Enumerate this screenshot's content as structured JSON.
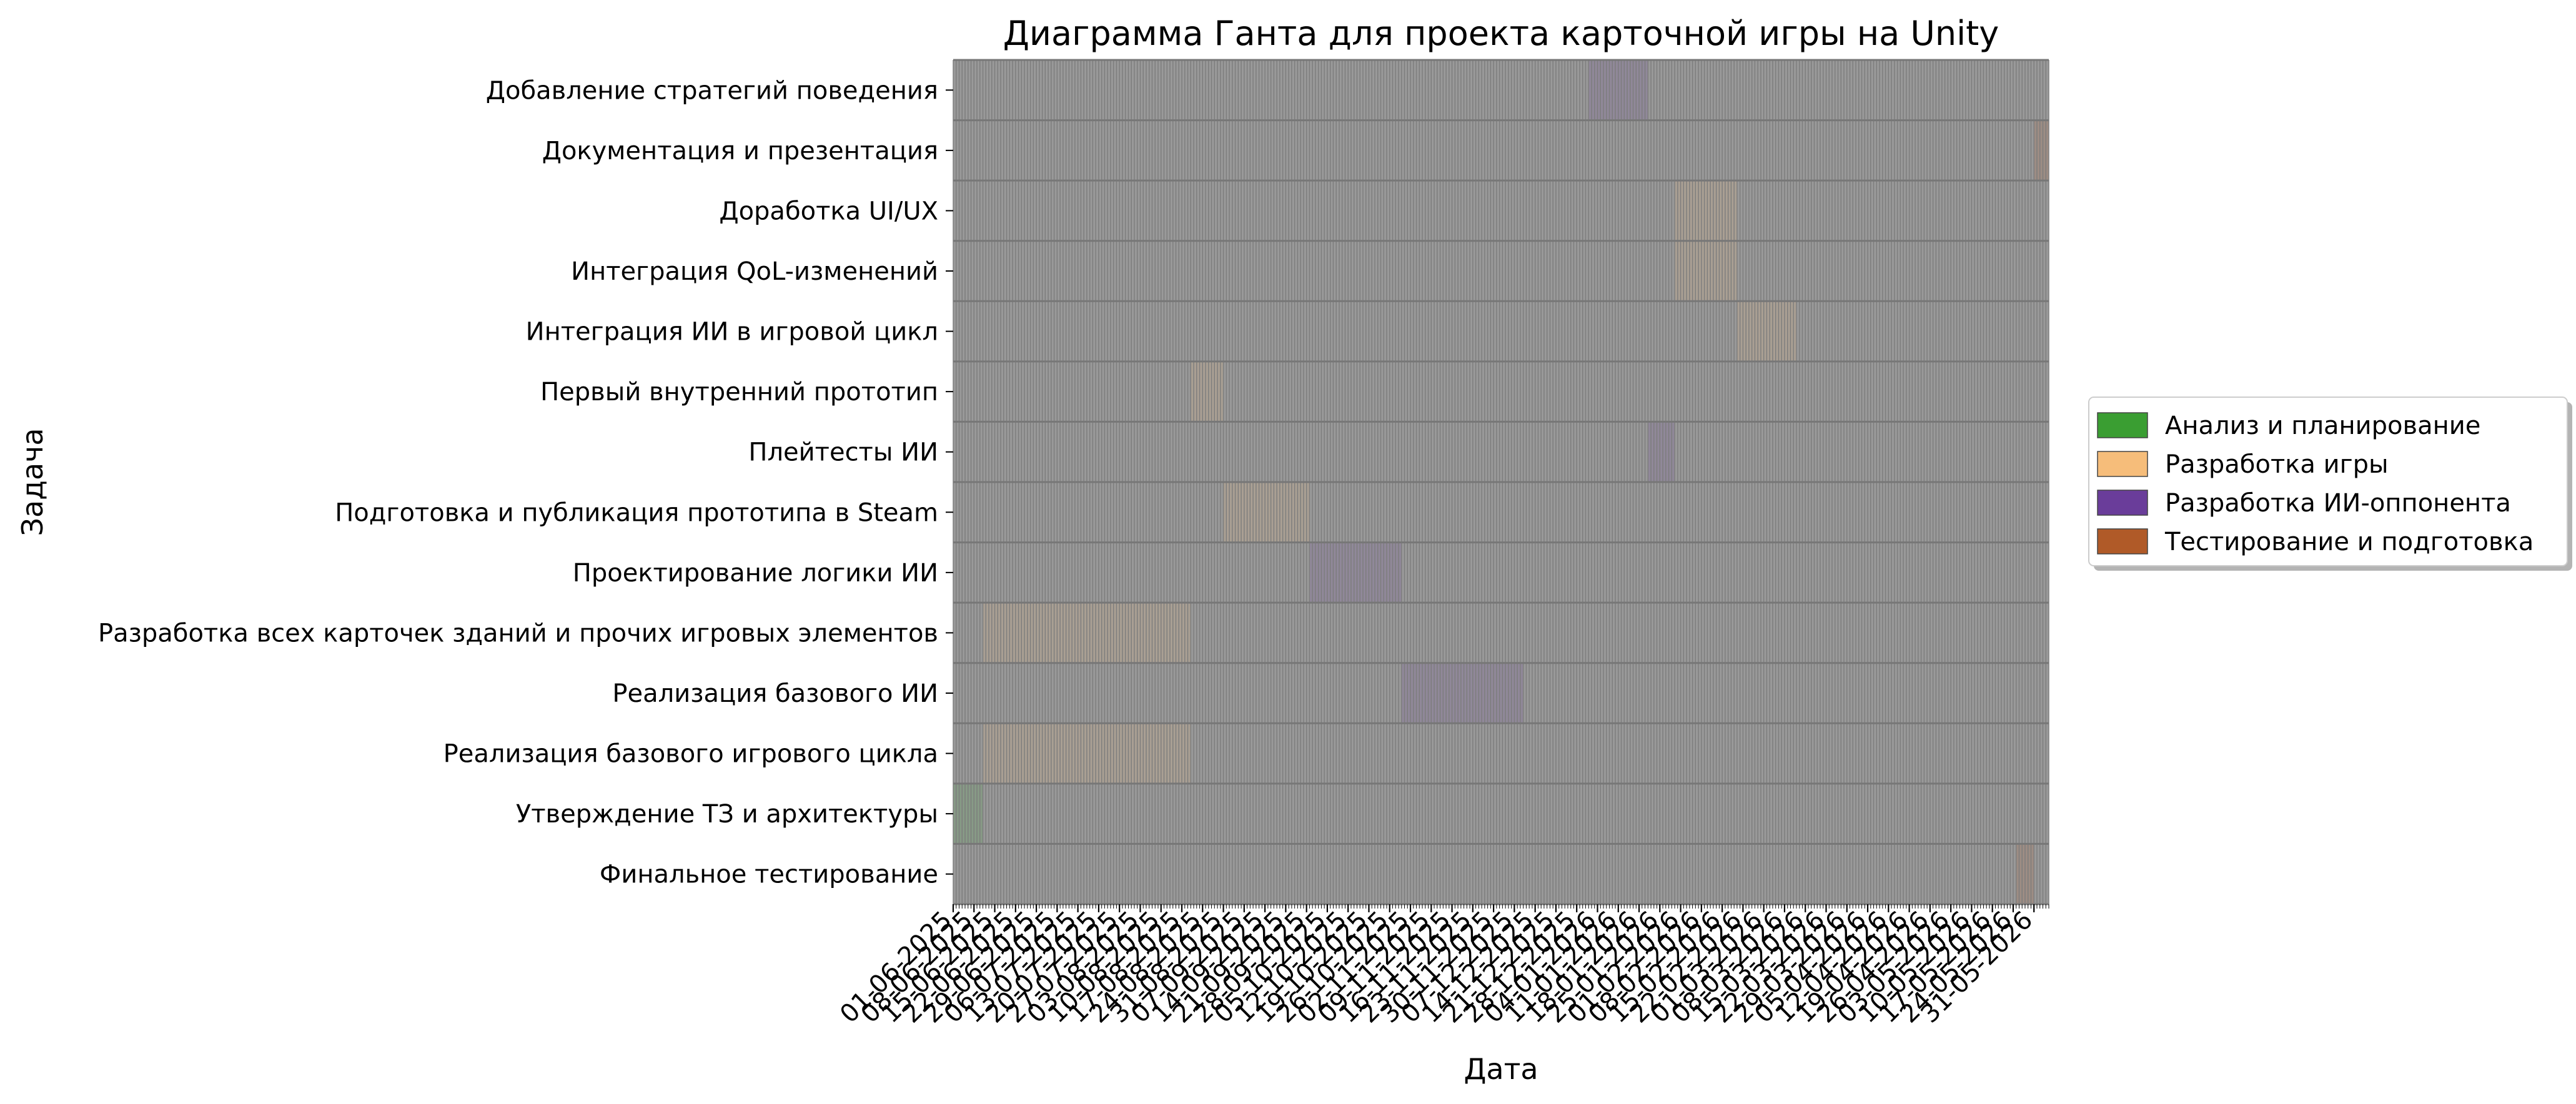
{
  "chart_data": {
    "type": "gantt",
    "title": "Диаграмма Ганта для проекта карточной игры на Unity",
    "xlabel": "Дата",
    "ylabel": "Задача",
    "x_range": [
      "2025-06-01",
      "2026-06-05"
    ],
    "x_tick_labels": [
      "01-06-2025",
      "08-06-2025",
      "15-06-2025",
      "22-06-2025",
      "29-06-2025",
      "06-07-2025",
      "13-07-2025",
      "20-07-2025",
      "27-07-2025",
      "03-08-2025",
      "10-08-2025",
      "17-08-2025",
      "24-08-2025",
      "31-08-2025",
      "07-09-2025",
      "14-09-2025",
      "21-09-2025",
      "28-09-2025",
      "05-10-2025",
      "12-10-2025",
      "19-10-2025",
      "26-10-2025",
      "02-11-2025",
      "09-11-2025",
      "16-11-2025",
      "23-11-2025",
      "30-11-2025",
      "07-12-2025",
      "14-12-2025",
      "21-12-2025",
      "28-12-2025",
      "04-01-2026",
      "11-01-2026",
      "18-01-2026",
      "25-01-2026",
      "01-02-2026",
      "08-02-2026",
      "15-02-2026",
      "22-02-2026",
      "01-03-2026",
      "08-03-2026",
      "15-03-2026",
      "22-03-2026",
      "29-03-2026",
      "05-04-2026",
      "12-04-2026",
      "19-04-2026",
      "26-04-2026",
      "03-05-2026",
      "10-05-2026",
      "17-05-2026",
      "24-05-2026",
      "31-05-2026"
    ],
    "grid": true,
    "legend_position": "right",
    "categories": [
      "Добавление стратегий поведения",
      "Документация и презентация",
      "Доработка UI/UX",
      "Интеграция QoL-изменений",
      "Интеграция ИИ в игровой цикл",
      "Первый внутренний прототип",
      "Плейтесты ИИ",
      "Подготовка и публикация прототипа в Steam",
      "Проектирование логики ИИ",
      "Разработка всех карточек зданий и прочих игровых элементов",
      "Реализация базового ИИ",
      "Реализация базового игрового цикла",
      "Утверждение ТЗ и архитектуры",
      "Финальное тестирование"
    ],
    "legend": [
      {
        "name": "Анализ и планирование",
        "color": "#3a9e32"
      },
      {
        "name": "Разработка игры",
        "color": "#f6bd7a"
      },
      {
        "name": "Разработка ИИ-оппонента",
        "color": "#6a3d9a"
      },
      {
        "name": "Тестирование и подготовка",
        "color": "#b05a28"
      }
    ],
    "tasks": [
      {
        "task": "Добавление стратегий поведения",
        "start": "2026-01-01",
        "end": "2026-01-21",
        "group": 2
      },
      {
        "task": "Документация и презентация",
        "start": "2026-05-31",
        "end": "2026-06-05",
        "group": 3
      },
      {
        "task": "Доработка UI/UX",
        "start": "2026-01-30",
        "end": "2026-02-20",
        "group": 1
      },
      {
        "task": "Интеграция QoL-изменений",
        "start": "2026-01-30",
        "end": "2026-02-20",
        "group": 1
      },
      {
        "task": "Интеграция ИИ в игровой цикл",
        "start": "2026-02-20",
        "end": "2026-03-12",
        "group": 1
      },
      {
        "task": "Первый внутренний прототип",
        "start": "2025-08-20",
        "end": "2025-08-31",
        "group": 1
      },
      {
        "task": "Плейтесты ИИ",
        "start": "2026-01-21",
        "end": "2026-01-30",
        "group": 2
      },
      {
        "task": "Подготовка и публикация прототипа в Steam",
        "start": "2025-08-31",
        "end": "2025-09-29",
        "group": 1
      },
      {
        "task": "Проектирование логики ИИ",
        "start": "2025-09-29",
        "end": "2025-10-30",
        "group": 2
      },
      {
        "task": "Разработка всех карточек зданий и прочих игровых элементов",
        "start": "2025-06-11",
        "end": "2025-08-20",
        "group": 1
      },
      {
        "task": "Реализация базового ИИ",
        "start": "2025-10-30",
        "end": "2025-12-10",
        "group": 2
      },
      {
        "task": "Реализация базового игрового цикла",
        "start": "2025-06-11",
        "end": "2025-08-20",
        "group": 1
      },
      {
        "task": "Утверждение ТЗ и архитектуры",
        "start": "2025-06-01",
        "end": "2025-06-11",
        "group": 0
      },
      {
        "task": "Финальное тестирование",
        "start": "2026-05-25",
        "end": "2026-05-31",
        "group": 3
      }
    ]
  }
}
